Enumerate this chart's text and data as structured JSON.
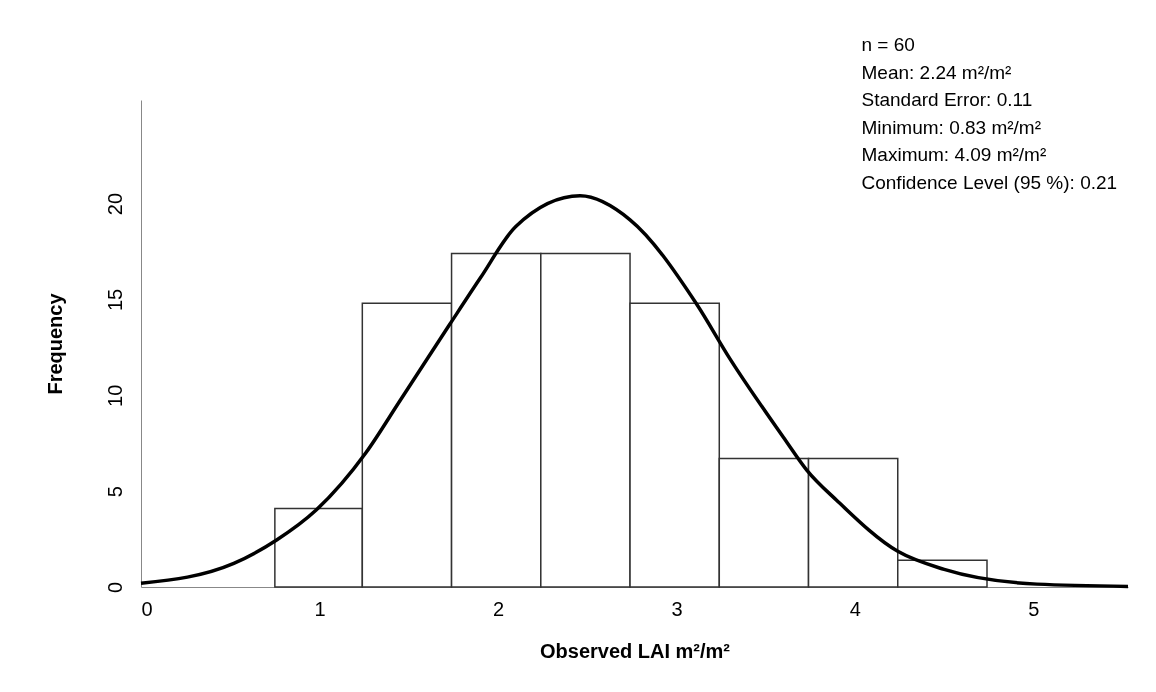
{
  "chart_data": {
    "type": "histogram",
    "xlabel": "Observed LAI m²/m²",
    "ylabel": "Frequency",
    "bins": [
      0.75,
      1.24,
      1.74,
      2.24,
      2.74,
      3.24,
      3.74,
      4.24,
      4.74
    ],
    "series": [
      {
        "type": "histogram",
        "color": "#ffffff",
        "values": [
          4.1,
          14.8,
          17.4,
          17.4,
          14.8,
          6.7,
          6.7,
          1.4
        ]
      },
      {
        "type": "line",
        "color": "#000000",
        "x": [
          0,
          0.52,
          0.76,
          0.98,
          1.26,
          1.45,
          1.73,
          1.9,
          2.1,
          2.46,
          2.74,
          3.11,
          3.3,
          3.6,
          3.73,
          3.9,
          4.24,
          4.5,
          5.02,
          5.53
        ],
        "values": [
          0.19,
          1.23,
          2.45,
          4.0,
          7.0,
          9.7,
          13.7,
          16.1,
          18.8,
          20.4,
          19.15,
          14.8,
          11.9,
          7.8,
          6.1,
          4.5,
          1.86,
          0.92,
          0.15,
          0.03
        ]
      }
    ],
    "xlim": [
      0,
      5.53
    ],
    "xticks": [
      0,
      1,
      2,
      3,
      4,
      5
    ],
    "ylim": [
      0,
      25.4
    ],
    "yticks": [
      0,
      5,
      10,
      15,
      20
    ],
    "grid": false,
    "annotations": [
      "n = 60",
      "Mean: 2.24 m²/m²",
      "Standard Error: 0.11",
      "Minimum: 0.83 m²/m²",
      "Maximum: 4.09 m²/m²",
      "Confidence Level (95 %): 0.21"
    ]
  }
}
